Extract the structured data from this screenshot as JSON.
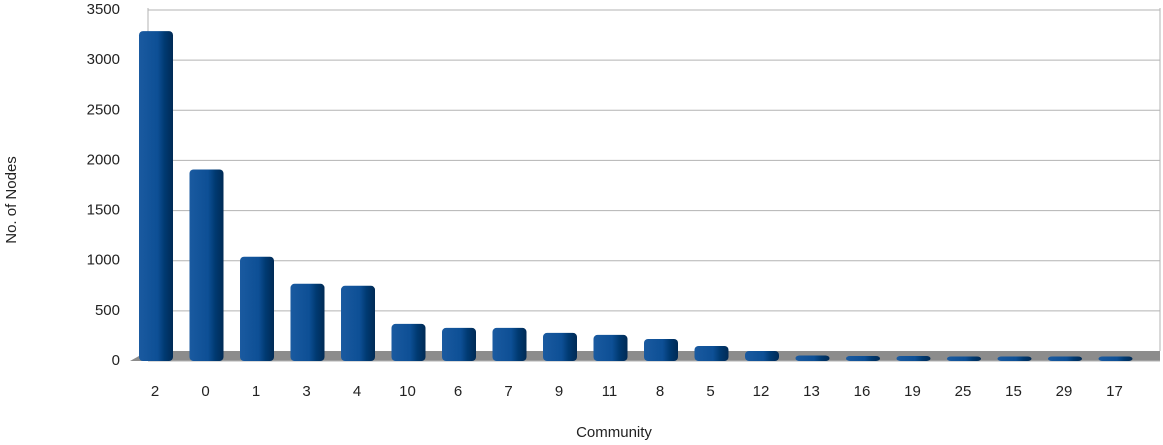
{
  "chart_data": {
    "type": "bar",
    "x_label": "Community",
    "y_label": "No. of Nodes",
    "categories": [
      "2",
      "0",
      "1",
      "3",
      "4",
      "10",
      "6",
      "7",
      "9",
      "11",
      "8",
      "5",
      "12",
      "13",
      "16",
      "19",
      "25",
      "15",
      "29",
      "17"
    ],
    "values": [
      3250,
      1870,
      1000,
      730,
      710,
      330,
      290,
      290,
      240,
      220,
      180,
      110,
      60,
      15,
      10,
      10,
      5,
      5,
      5,
      5
    ],
    "color": "#004586",
    "ylim": [
      0,
      3500
    ],
    "yticks": [
      0,
      500,
      1000,
      1500,
      2000,
      2500,
      3000,
      3500
    ],
    "grid": true
  }
}
